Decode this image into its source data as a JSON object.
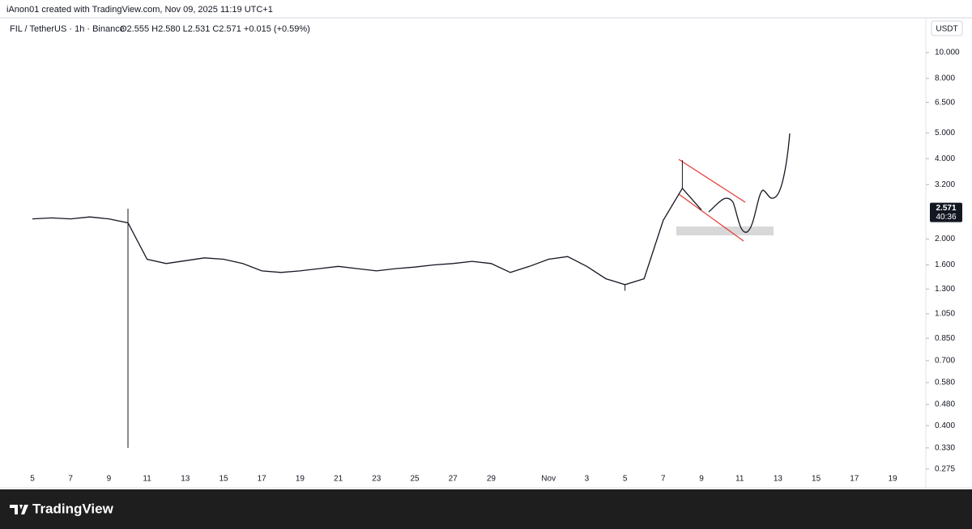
{
  "header": {
    "credit": "iAnon01 created with TradingView.com, Nov 09, 2025 11:19 UTC+1"
  },
  "chart_data": {
    "type": "line",
    "symbol": "FIL / TetherUS · 1h · Binance",
    "ohlc": "O2.555 H2.580 L2.531 C2.571 +0.015 (+0.59%)",
    "currency": "USDT",
    "countdown": "40:36",
    "log_scale": true,
    "color": "#131722",
    "categories": [
      "5",
      null,
      "7",
      null,
      "9",
      null,
      "11",
      null,
      "13",
      null,
      "15",
      null,
      "17",
      null,
      "19",
      null,
      "21",
      null,
      "23",
      null,
      "25",
      null,
      "27",
      null,
      "29",
      null,
      null,
      "Nov",
      null,
      "3",
      null,
      "5",
      null,
      "7",
      null,
      "9",
      null,
      "11",
      null,
      "13",
      null,
      "15",
      null,
      "17",
      null,
      "19"
    ],
    "values": [
      2.38,
      2.4,
      2.38,
      2.42,
      2.38,
      2.3,
      1.68,
      1.62,
      1.66,
      1.7,
      1.68,
      1.62,
      1.52,
      1.5,
      1.52,
      1.55,
      1.58,
      1.55,
      1.52,
      1.55,
      1.57,
      1.6,
      1.62,
      1.65,
      1.62,
      1.5,
      1.58,
      1.68,
      1.72,
      1.58,
      1.42,
      1.35,
      1.42,
      2.35,
      3.1,
      2.571,
      null,
      null,
      null,
      null,
      null,
      null,
      null,
      null,
      null,
      null
    ],
    "lows": [
      null,
      null,
      null,
      null,
      null,
      0.33,
      null,
      null,
      null,
      null,
      null,
      null,
      null,
      null,
      null,
      null,
      null,
      null,
      null,
      null,
      null,
      null,
      null,
      null,
      null,
      null,
      null,
      null,
      null,
      null,
      null,
      1.28,
      null,
      null,
      null,
      null,
      null,
      null,
      null,
      null,
      null,
      null,
      null,
      null,
      null,
      null
    ],
    "highs": [
      null,
      null,
      null,
      null,
      null,
      2.6,
      null,
      null,
      null,
      null,
      null,
      null,
      null,
      null,
      null,
      null,
      null,
      null,
      null,
      null,
      null,
      null,
      null,
      null,
      null,
      null,
      null,
      null,
      null,
      null,
      null,
      null,
      null,
      null,
      3.95,
      null,
      null,
      null,
      null,
      null,
      null,
      null,
      null,
      null,
      null,
      null
    ],
    "ylim": [
      0.234,
      13.4
    ],
    "yticks": [
      {
        "value": 10,
        "label": "10.000"
      },
      {
        "value": 8,
        "label": "8.000"
      },
      {
        "value": 6.5,
        "label": "6.500"
      },
      {
        "value": 5,
        "label": "5.000"
      },
      {
        "value": 4,
        "label": "4.000"
      },
      {
        "value": 3.2,
        "label": "3.200"
      },
      {
        "value": 2,
        "label": "2.000"
      },
      {
        "value": 1.6,
        "label": "1.600"
      },
      {
        "value": 1.3,
        "label": "1.300"
      },
      {
        "value": 1.05,
        "label": "1.050"
      },
      {
        "value": 0.85,
        "label": "0.850"
      },
      {
        "value": 0.7,
        "label": "0.700"
      },
      {
        "value": 0.58,
        "label": "0.580"
      },
      {
        "value": 0.48,
        "label": "0.480"
      },
      {
        "value": 0.4,
        "label": "0.400"
      },
      {
        "value": 0.33,
        "label": "0.330"
      },
      {
        "value": 0.275,
        "label": "0.275"
      }
    ]
  },
  "footer": {
    "brand": "TradingView"
  }
}
